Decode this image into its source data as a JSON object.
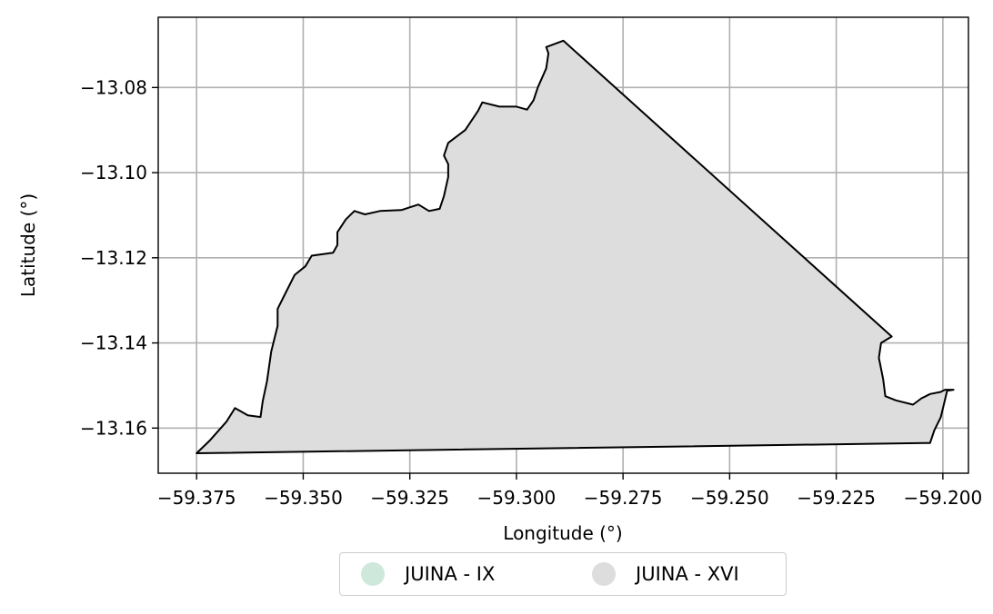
{
  "chart_data": {
    "type": "map",
    "title": "",
    "xlabel": "Longitude (°)",
    "ylabel": "Latitude (°)",
    "xlim": [
      -59.384,
      -59.194
    ],
    "ylim": [
      -13.1706,
      -13.0635
    ],
    "xticks": [
      -59.375,
      -59.35,
      -59.325,
      -59.3,
      -59.275,
      -59.25,
      -59.225,
      -59.2
    ],
    "yticks": [
      -13.08,
      -13.1,
      -13.12,
      -13.14,
      -13.16
    ],
    "xtick_labels": [
      "−59.375",
      "−59.350",
      "−59.325",
      "−59.300",
      "−59.275",
      "−59.250",
      "−59.225",
      "−59.200"
    ],
    "ytick_labels": [
      "−13.08",
      "−13.10",
      "−13.12",
      "−13.14",
      "−13.16"
    ],
    "grid": true,
    "legend_position": "below",
    "series": [
      {
        "name": "JUINA - IX",
        "color": "#cfe8dc"
      },
      {
        "name": "JUINA - XVI",
        "color": "#dddddd"
      }
    ],
    "polygon": {
      "series": "JUINA - XVI",
      "fill": "#dddddd",
      "edge": "#000000",
      "coordinates": [
        [
          -59.375,
          -13.1659
        ],
        [
          -59.372,
          -13.163
        ],
        [
          -59.368,
          -13.1585
        ],
        [
          -59.366,
          -13.1553
        ],
        [
          -59.363,
          -13.157
        ],
        [
          -59.36,
          -13.1574
        ],
        [
          -59.3595,
          -13.1537
        ],
        [
          -59.3585,
          -13.149
        ],
        [
          -59.3575,
          -13.142
        ],
        [
          -59.356,
          -13.136
        ],
        [
          -59.356,
          -13.132
        ],
        [
          -59.3545,
          -13.129
        ],
        [
          -59.352,
          -13.124
        ],
        [
          -59.3495,
          -13.122
        ],
        [
          -59.348,
          -13.1195
        ],
        [
          -59.343,
          -13.1188
        ],
        [
          -59.342,
          -13.117
        ],
        [
          -59.342,
          -13.114
        ],
        [
          -59.34,
          -13.111
        ],
        [
          -59.338,
          -13.109
        ],
        [
          -59.3355,
          -13.1098
        ],
        [
          -59.332,
          -13.109
        ],
        [
          -59.327,
          -13.1088
        ],
        [
          -59.323,
          -13.1075
        ],
        [
          -59.3205,
          -13.109
        ],
        [
          -59.318,
          -13.1085
        ],
        [
          -59.317,
          -13.1055
        ],
        [
          -59.316,
          -13.101
        ],
        [
          -59.316,
          -13.098
        ],
        [
          -59.317,
          -13.096
        ],
        [
          -59.316,
          -13.093
        ],
        [
          -59.312,
          -13.09
        ],
        [
          -59.309,
          -13.0855
        ],
        [
          -59.308,
          -13.0835
        ],
        [
          -59.304,
          -13.0845
        ],
        [
          -59.3,
          -13.0845
        ],
        [
          -59.2975,
          -13.0852
        ],
        [
          -59.296,
          -13.083
        ],
        [
          -59.295,
          -13.08
        ],
        [
          -59.293,
          -13.0755
        ],
        [
          -59.2925,
          -13.072
        ],
        [
          -59.293,
          -13.0705
        ],
        [
          -59.289,
          -13.069
        ],
        [
          -59.212,
          -13.1385
        ],
        [
          -59.2145,
          -13.14
        ],
        [
          -59.215,
          -13.1435
        ],
        [
          -59.214,
          -13.1485
        ],
        [
          -59.2135,
          -13.1525
        ],
        [
          -59.211,
          -13.1535
        ],
        [
          -59.207,
          -13.1545
        ],
        [
          -59.205,
          -13.153
        ],
        [
          -59.203,
          -13.152
        ],
        [
          -59.2005,
          -13.1515
        ],
        [
          -59.1995,
          -13.151
        ],
        [
          -59.1975,
          -13.151
        ],
        [
          -59.199,
          -13.1512
        ],
        [
          -59.2005,
          -13.1575
        ],
        [
          -59.202,
          -13.1605
        ],
        [
          -59.203,
          -13.1635
        ],
        [
          -59.375,
          -13.1659
        ]
      ]
    }
  }
}
